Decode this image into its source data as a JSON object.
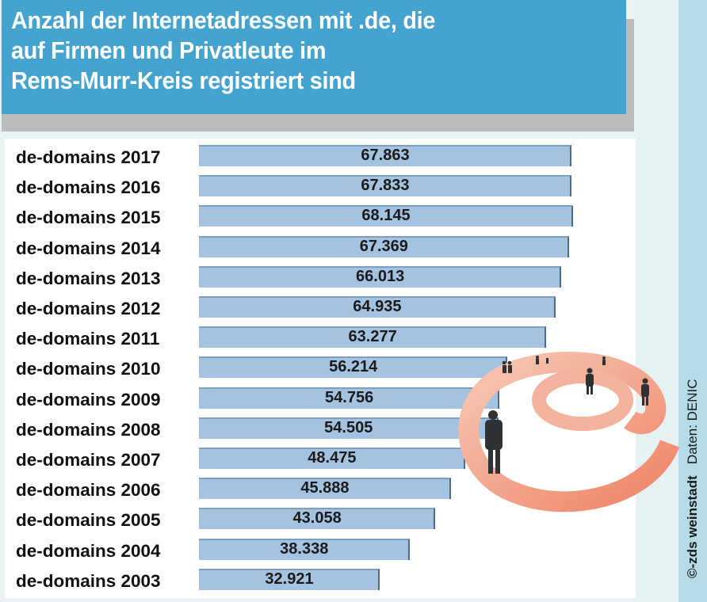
{
  "title_lines": [
    "Anzahl der Internetadressen mit .de, die",
    "auf Firmen und Privatleute im",
    "Rems-Murr-Kreis registriert sind"
  ],
  "credit": {
    "copyright": "©-zds weinstadt",
    "source": "Daten: DENIC"
  },
  "colors": {
    "title_bg": "#44a4cf",
    "bar_fill": "#a4c3e0",
    "at_symbol": "#f0967a"
  },
  "chart_data": {
    "type": "bar",
    "orientation": "horizontal",
    "title": "Anzahl der Internetadressen mit .de, die auf Firmen und Privatleute im Rems-Murr-Kreis registriert sind",
    "xlabel": "",
    "ylabel": "",
    "grid": false,
    "legend": "none",
    "xlim": [
      0,
      68145
    ],
    "categories": [
      "de-domains 2017",
      "de-domains 2016",
      "de-domains 2015",
      "de-domains 2014",
      "de-domains 2013",
      "de-domains 2012",
      "de-domains 2011",
      "de-domains 2010",
      "de-domains 2009",
      "de-domains 2008",
      "de-domains 2007",
      "de-domains 2006",
      "de-domains 2005",
      "de-domains 2004",
      "de-domains 2003"
    ],
    "values": [
      67863,
      67833,
      68145,
      67369,
      66013,
      64935,
      63277,
      56214,
      54756,
      54505,
      48475,
      45888,
      43058,
      38338,
      32921
    ],
    "value_labels": [
      "67.863",
      "67.833",
      "68.145",
      "67.369",
      "66.013",
      "64.935",
      "63.277",
      "56.214",
      "54.756",
      "54.505",
      "48.475",
      "45.888",
      "43.058",
      "38.338",
      "32.921"
    ],
    "source": "Daten: DENIC"
  }
}
